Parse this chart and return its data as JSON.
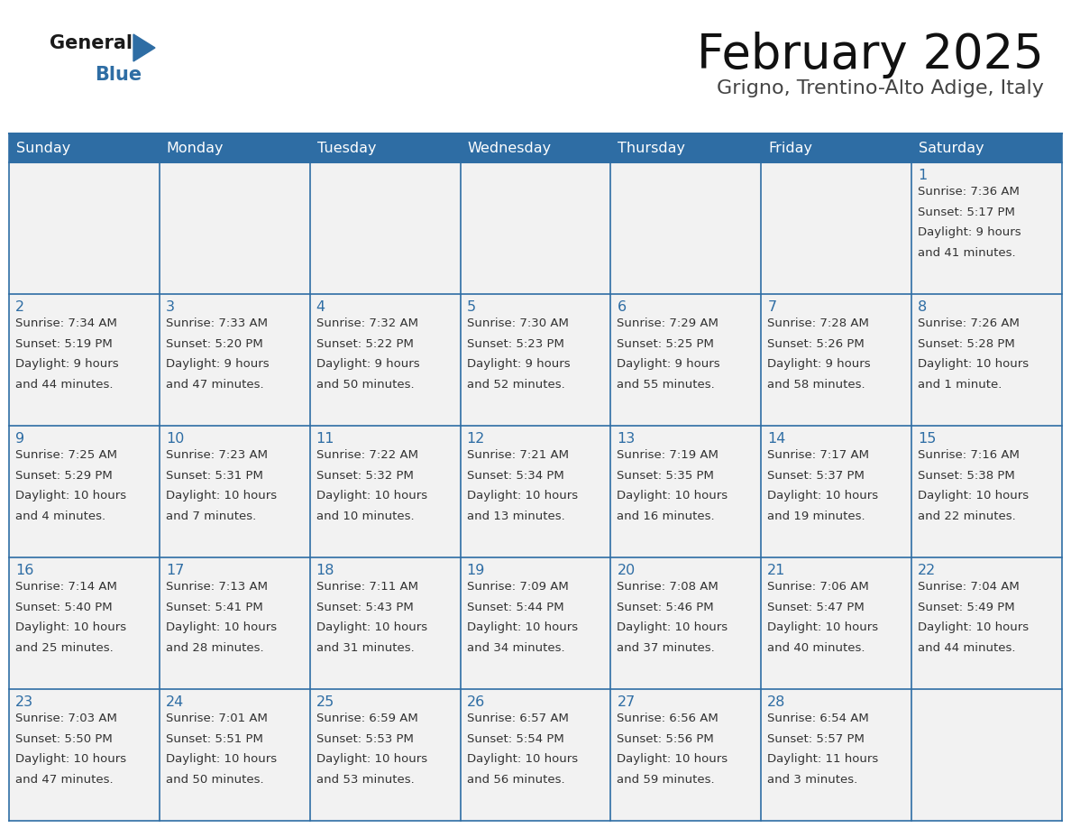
{
  "title": "February 2025",
  "subtitle": "Grigno, Trentino-Alto Adige, Italy",
  "days_of_week": [
    "Sunday",
    "Monday",
    "Tuesday",
    "Wednesday",
    "Thursday",
    "Friday",
    "Saturday"
  ],
  "header_bg": "#2E6DA4",
  "header_text": "#FFFFFF",
  "cell_bg": "#F2F2F2",
  "border_color": "#2E6DA4",
  "day_num_color": "#2E6DA4",
  "text_color": "#333333",
  "logo_general_color": "#1a1a1a",
  "logo_blue_color": "#2E6DA4",
  "weeks": [
    [
      null,
      null,
      null,
      null,
      null,
      null,
      1
    ],
    [
      2,
      3,
      4,
      5,
      6,
      7,
      8
    ],
    [
      9,
      10,
      11,
      12,
      13,
      14,
      15
    ],
    [
      16,
      17,
      18,
      19,
      20,
      21,
      22
    ],
    [
      23,
      24,
      25,
      26,
      27,
      28,
      null
    ]
  ],
  "cell_data": {
    "1": {
      "sunrise": "7:36 AM",
      "sunset": "5:17 PM",
      "daylight_l1": "9 hours",
      "daylight_l2": "and 41 minutes."
    },
    "2": {
      "sunrise": "7:34 AM",
      "sunset": "5:19 PM",
      "daylight_l1": "9 hours",
      "daylight_l2": "and 44 minutes."
    },
    "3": {
      "sunrise": "7:33 AM",
      "sunset": "5:20 PM",
      "daylight_l1": "9 hours",
      "daylight_l2": "and 47 minutes."
    },
    "4": {
      "sunrise": "7:32 AM",
      "sunset": "5:22 PM",
      "daylight_l1": "9 hours",
      "daylight_l2": "and 50 minutes."
    },
    "5": {
      "sunrise": "7:30 AM",
      "sunset": "5:23 PM",
      "daylight_l1": "9 hours",
      "daylight_l2": "and 52 minutes."
    },
    "6": {
      "sunrise": "7:29 AM",
      "sunset": "5:25 PM",
      "daylight_l1": "9 hours",
      "daylight_l2": "and 55 minutes."
    },
    "7": {
      "sunrise": "7:28 AM",
      "sunset": "5:26 PM",
      "daylight_l1": "9 hours",
      "daylight_l2": "and 58 minutes."
    },
    "8": {
      "sunrise": "7:26 AM",
      "sunset": "5:28 PM",
      "daylight_l1": "10 hours",
      "daylight_l2": "and 1 minute."
    },
    "9": {
      "sunrise": "7:25 AM",
      "sunset": "5:29 PM",
      "daylight_l1": "10 hours",
      "daylight_l2": "and 4 minutes."
    },
    "10": {
      "sunrise": "7:23 AM",
      "sunset": "5:31 PM",
      "daylight_l1": "10 hours",
      "daylight_l2": "and 7 minutes."
    },
    "11": {
      "sunrise": "7:22 AM",
      "sunset": "5:32 PM",
      "daylight_l1": "10 hours",
      "daylight_l2": "and 10 minutes."
    },
    "12": {
      "sunrise": "7:21 AM",
      "sunset": "5:34 PM",
      "daylight_l1": "10 hours",
      "daylight_l2": "and 13 minutes."
    },
    "13": {
      "sunrise": "7:19 AM",
      "sunset": "5:35 PM",
      "daylight_l1": "10 hours",
      "daylight_l2": "and 16 minutes."
    },
    "14": {
      "sunrise": "7:17 AM",
      "sunset": "5:37 PM",
      "daylight_l1": "10 hours",
      "daylight_l2": "and 19 minutes."
    },
    "15": {
      "sunrise": "7:16 AM",
      "sunset": "5:38 PM",
      "daylight_l1": "10 hours",
      "daylight_l2": "and 22 minutes."
    },
    "16": {
      "sunrise": "7:14 AM",
      "sunset": "5:40 PM",
      "daylight_l1": "10 hours",
      "daylight_l2": "and 25 minutes."
    },
    "17": {
      "sunrise": "7:13 AM",
      "sunset": "5:41 PM",
      "daylight_l1": "10 hours",
      "daylight_l2": "and 28 minutes."
    },
    "18": {
      "sunrise": "7:11 AM",
      "sunset": "5:43 PM",
      "daylight_l1": "10 hours",
      "daylight_l2": "and 31 minutes."
    },
    "19": {
      "sunrise": "7:09 AM",
      "sunset": "5:44 PM",
      "daylight_l1": "10 hours",
      "daylight_l2": "and 34 minutes."
    },
    "20": {
      "sunrise": "7:08 AM",
      "sunset": "5:46 PM",
      "daylight_l1": "10 hours",
      "daylight_l2": "and 37 minutes."
    },
    "21": {
      "sunrise": "7:06 AM",
      "sunset": "5:47 PM",
      "daylight_l1": "10 hours",
      "daylight_l2": "and 40 minutes."
    },
    "22": {
      "sunrise": "7:04 AM",
      "sunset": "5:49 PM",
      "daylight_l1": "10 hours",
      "daylight_l2": "and 44 minutes."
    },
    "23": {
      "sunrise": "7:03 AM",
      "sunset": "5:50 PM",
      "daylight_l1": "10 hours",
      "daylight_l2": "and 47 minutes."
    },
    "24": {
      "sunrise": "7:01 AM",
      "sunset": "5:51 PM",
      "daylight_l1": "10 hours",
      "daylight_l2": "and 50 minutes."
    },
    "25": {
      "sunrise": "6:59 AM",
      "sunset": "5:53 PM",
      "daylight_l1": "10 hours",
      "daylight_l2": "and 53 minutes."
    },
    "26": {
      "sunrise": "6:57 AM",
      "sunset": "5:54 PM",
      "daylight_l1": "10 hours",
      "daylight_l2": "and 56 minutes."
    },
    "27": {
      "sunrise": "6:56 AM",
      "sunset": "5:56 PM",
      "daylight_l1": "10 hours",
      "daylight_l2": "and 59 minutes."
    },
    "28": {
      "sunrise": "6:54 AM",
      "sunset": "5:57 PM",
      "daylight_l1": "11 hours",
      "daylight_l2": "and 3 minutes."
    }
  }
}
